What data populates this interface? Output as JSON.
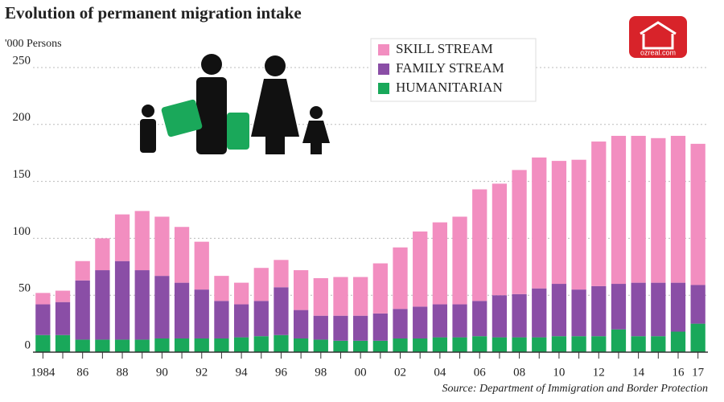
{
  "chart_data": {
    "type": "stacked-bar",
    "title": "Evolution of permanent migration intake",
    "y_label": "'000 Persons",
    "source": "Source: Department of Immigration and Border Protection",
    "logo_text": "ozreal.com",
    "categories": [
      "1984",
      null,
      "86",
      null,
      "88",
      null,
      "90",
      null,
      "92",
      null,
      "94",
      null,
      "96",
      null,
      "98",
      null,
      "00",
      null,
      "02",
      null,
      "04",
      null,
      "06",
      null,
      "08",
      null,
      "10",
      null,
      "12",
      null,
      "14",
      null,
      "16",
      "17"
    ],
    "series": [
      {
        "name": "SKILL STREAM",
        "color": "#f28ec0",
        "values": [
          10,
          10,
          17,
          28,
          41,
          52,
          52,
          49,
          42,
          22,
          19,
          29,
          24,
          35,
          33,
          34,
          34,
          44,
          54,
          66,
          72,
          77,
          98,
          98,
          109,
          115,
          108,
          114,
          127,
          130,
          129,
          127,
          129,
          124
        ]
      },
      {
        "name": "FAMILY STREAM",
        "color": "#8a4ea6",
        "values": [
          27,
          29,
          52,
          61,
          69,
          61,
          55,
          49,
          43,
          33,
          29,
          31,
          42,
          25,
          21,
          22,
          22,
          24,
          26,
          28,
          29,
          29,
          31,
          37,
          38,
          43,
          46,
          41,
          44,
          40,
          47,
          47,
          43,
          34
        ]
      },
      {
        "name": "HUMANITARIAN",
        "color": "#19a85a",
        "values": [
          15,
          15,
          11,
          11,
          11,
          11,
          12,
          12,
          12,
          12,
          13,
          14,
          15,
          12,
          11,
          10,
          10,
          10,
          12,
          12,
          13,
          13,
          14,
          13,
          13,
          13,
          14,
          14,
          14,
          20,
          14,
          14,
          18,
          25
        ]
      }
    ],
    "ylim": [
      0,
      250
    ],
    "yticks": [
      0,
      50,
      100,
      150,
      200,
      250
    ],
    "grid": true
  }
}
